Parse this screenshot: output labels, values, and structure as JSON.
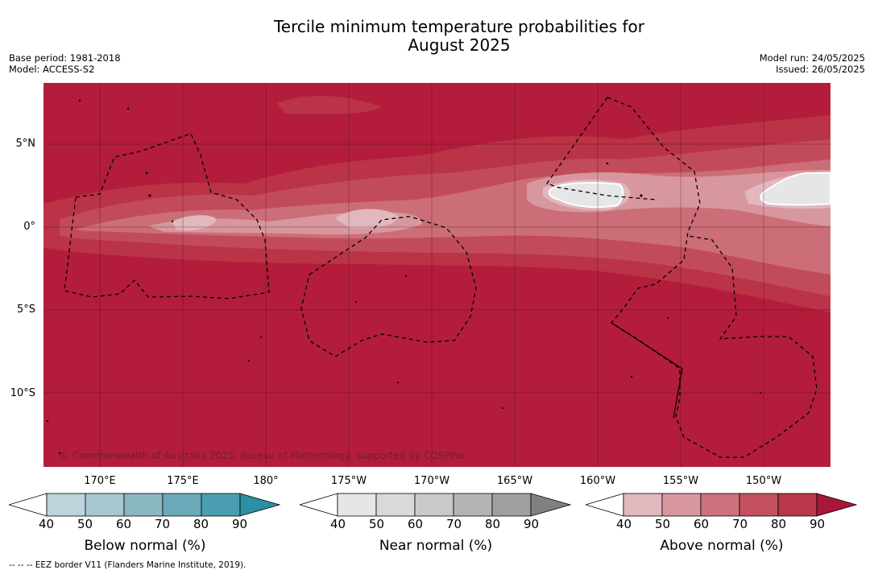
{
  "title_line1": "Tercile minimum temperature probabilities for",
  "title_line2": "August 2025",
  "meta_left": [
    "Base period: 1981-2018",
    "Model: ACCESS-S2"
  ],
  "meta_right": [
    "Model run: 24/05/2025",
    "Issued: 26/05/2025"
  ],
  "lat_labels": [
    "5°N",
    "0°",
    "5°S",
    "10°S"
  ],
  "lon_labels": [
    "170°E",
    "175°E",
    "180°",
    "175°W",
    "170°W",
    "165°W",
    "160°W",
    "155°W",
    "150°W"
  ],
  "copyright": "© Commonwealth of Australia 2025, Bureau of Meteorology, supported by COSPPac",
  "colorbars": [
    {
      "name": "below",
      "title": "Below normal (%)",
      "ticks": [
        "40",
        "50",
        "60",
        "70",
        "80",
        "90"
      ],
      "colors": [
        "#bcd4dc",
        "#a6c7cf",
        "#8ab6c2",
        "#6aa9b9",
        "#4b9eb0",
        "#2c8fa3"
      ]
    },
    {
      "name": "near",
      "title": "Near normal (%)",
      "ticks": [
        "40",
        "50",
        "60",
        "70",
        "80",
        "90"
      ],
      "colors": [
        "#e6e6e6",
        "#d9d9d9",
        "#c9c9c9",
        "#b4b4b4",
        "#a0a0a0",
        "#808080"
      ]
    },
    {
      "name": "above",
      "title": "Above normal (%)",
      "ticks": [
        "40",
        "50",
        "60",
        "70",
        "80",
        "90"
      ],
      "colors": [
        "#e0b8bd",
        "#d8979e",
        "#cc727d",
        "#c2505f",
        "#b83749",
        "#a8173a"
      ]
    }
  ],
  "footnote": "-- -- -- EEZ border V11 (Flanders Marine Institute, 2019).",
  "palette": {
    "above_90": "#b31d3b",
    "above_80": "#ba3347",
    "above_70": "#c24b5b",
    "above_60": "#cc6e77",
    "above_50": "#d8979e",
    "above_40": "#e0b8bd",
    "near_40": "#e6e6e6",
    "near_50": "#d9d9d9",
    "grid": "#2a0a14"
  }
}
